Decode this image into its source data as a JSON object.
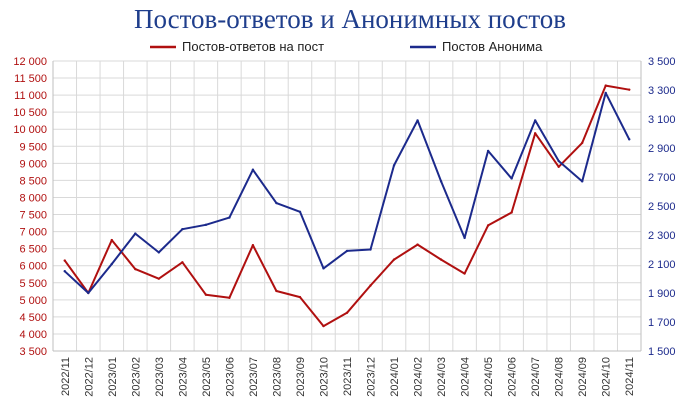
{
  "chart_data": {
    "type": "line",
    "title": "Постов-ответов и Анонимных постов",
    "categories": [
      "2022/11",
      "2022/12",
      "2023/01",
      "2023/02",
      "2023/03",
      "2023/04",
      "2023/05",
      "2023/06",
      "2023/07",
      "2023/08",
      "2023/09",
      "2023/10",
      "2023/11",
      "2023/12",
      "2024/01",
      "2024/02",
      "2024/03",
      "2024/04",
      "2024/05",
      "2024/06",
      "2024/07",
      "2024/08",
      "2024/09",
      "2024/10",
      "2024/11"
    ],
    "series": [
      {
        "name": "Постов-ответов на пост",
        "axis": "left",
        "color": "#B01010",
        "values": [
          6150,
          5200,
          6750,
          5900,
          5620,
          6100,
          5150,
          5060,
          6600,
          5260,
          5080,
          4230,
          4620,
          5420,
          6180,
          6620,
          6180,
          5770,
          7180,
          7560,
          9880,
          8900,
          9600,
          11280,
          11160
        ]
      },
      {
        "name": "Постов Анонима",
        "axis": "right",
        "color": "#1C2A8C",
        "values": [
          2050,
          1900,
          2100,
          2310,
          2180,
          2340,
          2370,
          2420,
          2750,
          2520,
          2460,
          2070,
          2190,
          2200,
          2780,
          3090,
          2670,
          2280,
          2880,
          2690,
          3090,
          2810,
          2670,
          3280,
          2960
        ]
      }
    ],
    "y_left": {
      "range": [
        3500,
        12000
      ],
      "ticks": [
        3500,
        4000,
        4500,
        5000,
        5500,
        6000,
        6500,
        7000,
        7500,
        8000,
        8500,
        9000,
        9500,
        10000,
        10500,
        11000,
        11500,
        12000
      ],
      "tick_labels": [
        "3 500",
        "4 000",
        "4 500",
        "5 000",
        "5 500",
        "6 000",
        "6 500",
        "7 000",
        "7 500",
        "8 000",
        "8 500",
        "9 000",
        "9 500",
        "10 000",
        "10 500",
        "11 000",
        "11 500",
        "12 000"
      ],
      "color": "#B01010"
    },
    "y_right": {
      "range": [
        1500,
        3500
      ],
      "ticks": [
        1500,
        1700,
        1900,
        2100,
        2300,
        2500,
        2700,
        2900,
        3100,
        3300,
        3500
      ],
      "tick_labels": [
        "1 500",
        "1 700",
        "1 900",
        "2 100",
        "2 300",
        "2 500",
        "2 700",
        "2 900",
        "3 100",
        "3 300",
        "3 500"
      ],
      "color": "#1C2A8C"
    },
    "grid": true,
    "legend_position": "top"
  }
}
